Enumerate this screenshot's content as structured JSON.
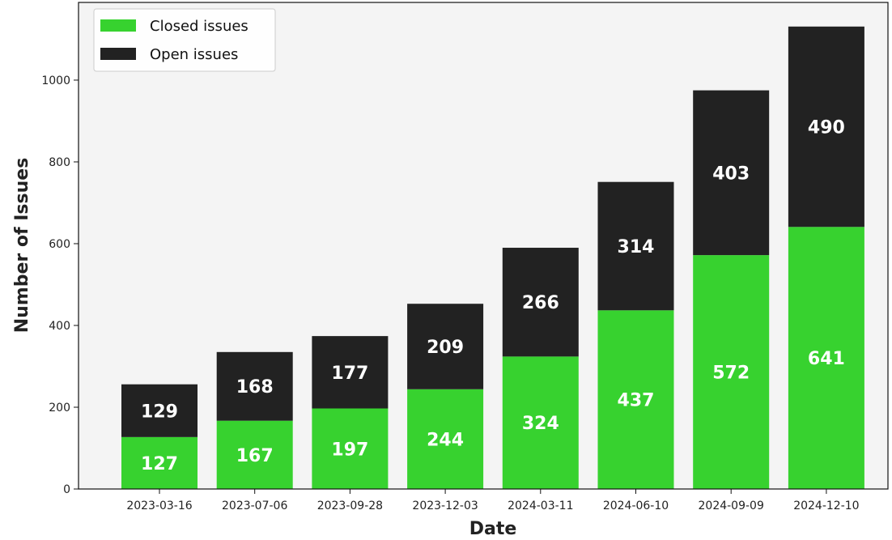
{
  "chart_data": {
    "type": "bar",
    "stacked": true,
    "categories": [
      "2023-03-16",
      "2023-07-06",
      "2023-09-28",
      "2023-12-03",
      "2024-03-11",
      "2024-06-10",
      "2024-09-09",
      "2024-12-10"
    ],
    "series": [
      {
        "name": "Closed issues",
        "color": "#37d22f",
        "values": [
          127,
          167,
          197,
          244,
          324,
          437,
          572,
          641
        ]
      },
      {
        "name": "Open issues",
        "color": "#222222",
        "values": [
          129,
          168,
          177,
          209,
          266,
          314,
          403,
          490
        ]
      }
    ],
    "title": "",
    "xlabel": "Date",
    "ylabel": "Number of Issues",
    "ylim": [
      0,
      1190
    ],
    "yticks": [
      0,
      200,
      400,
      600,
      800,
      1000
    ],
    "grid": false,
    "legend_position": "top-left",
    "plot_background": "#f4f4f4"
  }
}
